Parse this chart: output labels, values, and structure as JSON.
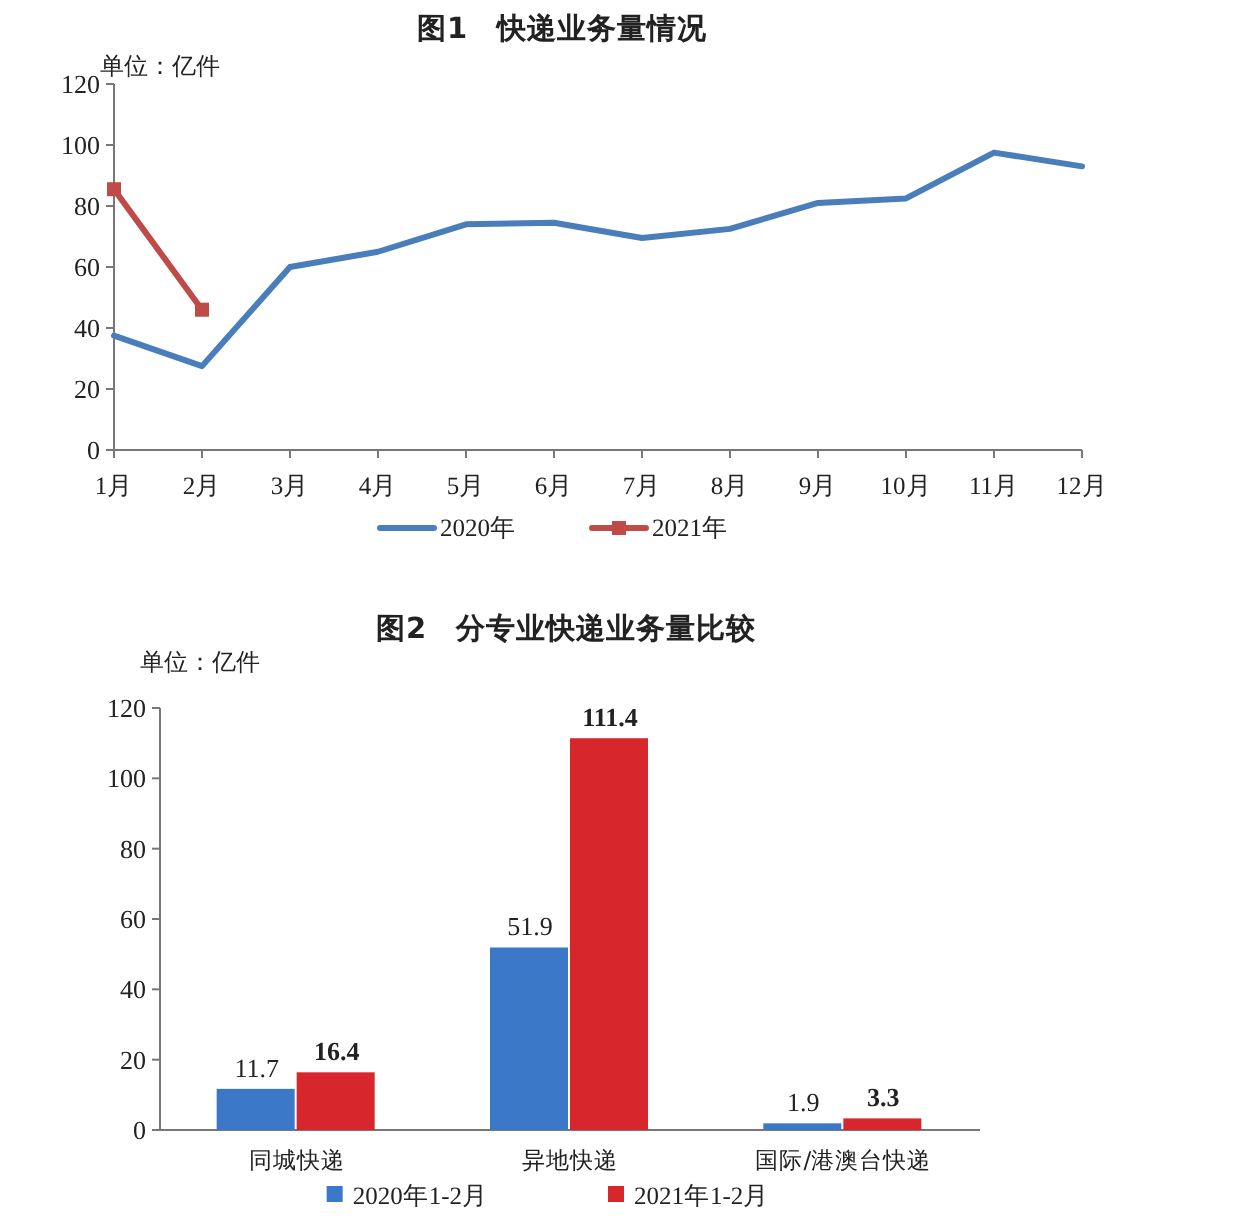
{
  "chart_data": [
    {
      "type": "line",
      "title": "图1　快递业务量情况",
      "ylabel": "单位：亿件",
      "categories": [
        "1月",
        "2月",
        "3月",
        "4月",
        "5月",
        "6月",
        "7月",
        "8月",
        "9月",
        "10月",
        "11月",
        "12月"
      ],
      "series": [
        {
          "name": "2020年",
          "color": "#4a7ebb",
          "values": [
            37.5,
            27.5,
            60,
            65,
            74,
            74.5,
            69.5,
            72.5,
            81,
            82.5,
            97.5,
            93
          ]
        },
        {
          "name": "2021年",
          "color": "#be4b48",
          "marker": "square",
          "values": [
            85.5,
            46,
            null,
            null,
            null,
            null,
            null,
            null,
            null,
            null,
            null,
            null
          ]
        }
      ],
      "ylim": [
        0,
        120
      ],
      "yticks": [
        0,
        20,
        40,
        60,
        80,
        100,
        120
      ],
      "legend": "bottom"
    },
    {
      "type": "bar",
      "title": "图2　分专业快递业务量比较",
      "ylabel": "单位：亿件",
      "categories": [
        "同城快递",
        "异地快递",
        "国际/港澳台快递"
      ],
      "series": [
        {
          "name": "2020年1-2月",
          "color": "#3b78c8",
          "values": [
            11.7,
            51.9,
            1.9
          ]
        },
        {
          "name": "2021年1-2月",
          "color": "#d8262d",
          "values": [
            16.4,
            111.4,
            3.3
          ]
        }
      ],
      "ylim": [
        0,
        120
      ],
      "yticks": [
        0,
        20,
        40,
        60,
        80,
        100,
        120
      ],
      "data_labels": true,
      "legend": "bottom"
    }
  ]
}
